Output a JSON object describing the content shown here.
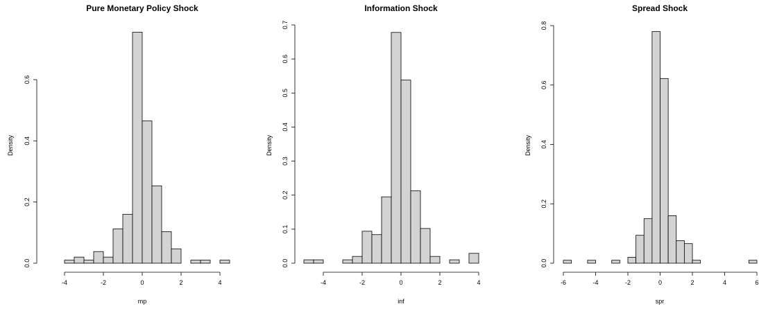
{
  "chart_data": [
    {
      "type": "bar",
      "title": "Pure Monetary Policy Shock",
      "xlabel": "mp",
      "ylabel": "Density",
      "bar_color": "#d3d3d3",
      "xlim": [
        -4.5,
        4.5
      ],
      "ylim": [
        0,
        0.76
      ],
      "x_ticks": [
        -4,
        -2,
        0,
        2,
        4
      ],
      "y_ticks": [
        0.0,
        0.2,
        0.4,
        0.6
      ],
      "y_tick_labels": [
        "0.0",
        "0.2",
        "0.4",
        "0.6"
      ],
      "bin_edges": [
        -4.0,
        -3.5,
        -3.0,
        -2.5,
        -2.0,
        -1.5,
        -1.0,
        -0.5,
        0.0,
        0.5,
        1.0,
        1.5,
        2.0,
        2.5,
        3.0,
        3.5,
        4.0,
        4.5
      ],
      "values": [
        0.01,
        0.02,
        0.01,
        0.038,
        0.02,
        0.112,
        0.16,
        0.755,
        0.465,
        0.253,
        0.103,
        0.047,
        0.0,
        0.01,
        0.01,
        0.0,
        0.01
      ]
    },
    {
      "type": "bar",
      "title": "Information Shock",
      "xlabel": "inf",
      "ylabel": "Density",
      "bar_color": "#d3d3d3",
      "xlim": [
        -5,
        4
      ],
      "ylim": [
        0,
        0.7
      ],
      "x_ticks": [
        -4,
        -2,
        0,
        2,
        4
      ],
      "y_ticks": [
        0.0,
        0.1,
        0.2,
        0.3,
        0.4,
        0.5,
        0.6,
        0.7
      ],
      "y_tick_labels": [
        "0.0",
        "0.1",
        "0.2",
        "0.3",
        "0.4",
        "0.5",
        "0.6",
        "0.7"
      ],
      "bin_edges": [
        -5.0,
        -4.5,
        -4.0,
        -3.5,
        -3.0,
        -2.5,
        -2.0,
        -1.5,
        -1.0,
        -0.5,
        0.0,
        0.5,
        1.0,
        1.5,
        2.0,
        2.5,
        3.0,
        3.5,
        4.0
      ],
      "values": [
        0.01,
        0.01,
        0.0,
        0.0,
        0.01,
        0.02,
        0.094,
        0.084,
        0.195,
        0.678,
        0.538,
        0.213,
        0.102,
        0.02,
        0.0,
        0.01,
        0.0,
        0.029
      ]
    },
    {
      "type": "bar",
      "title": "Spread Shock",
      "xlabel": "spr",
      "ylabel": "Density",
      "bar_color": "#d3d3d3",
      "xlim": [
        -6,
        6
      ],
      "ylim": [
        0,
        0.8
      ],
      "x_ticks": [
        -6,
        -4,
        -2,
        0,
        2,
        4,
        6
      ],
      "y_ticks": [
        0.0,
        0.2,
        0.4,
        0.6,
        0.8
      ],
      "y_tick_labels": [
        "0.0",
        "0.2",
        "0.4",
        "0.6",
        "0.8"
      ],
      "bin_edges": [
        -6.0,
        -5.5,
        -5.0,
        -4.5,
        -4.0,
        -3.5,
        -3.0,
        -2.5,
        -2.0,
        -1.5,
        -1.0,
        -0.5,
        0.0,
        0.5,
        1.0,
        1.5,
        2.0,
        2.5,
        3.0,
        3.5,
        4.0,
        4.5,
        5.0,
        5.5,
        6.0
      ],
      "values": [
        0.01,
        0.0,
        0.0,
        0.01,
        0.0,
        0.0,
        0.01,
        0.0,
        0.02,
        0.094,
        0.15,
        0.78,
        0.622,
        0.16,
        0.076,
        0.066,
        0.01,
        0.0,
        0.0,
        0.0,
        0.0,
        0.0,
        0.0,
        0.01
      ]
    }
  ]
}
